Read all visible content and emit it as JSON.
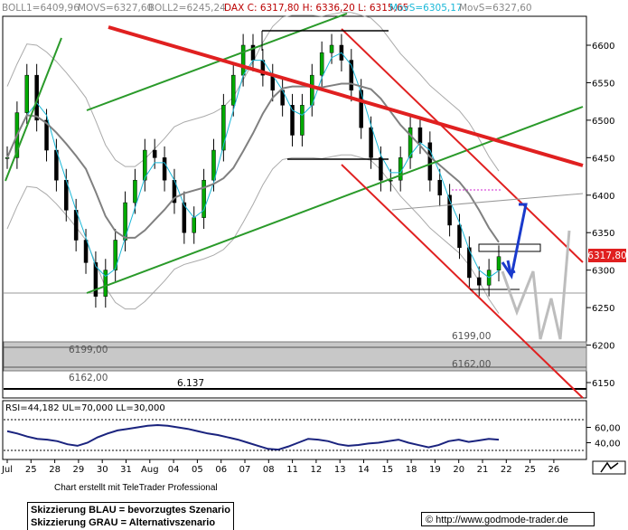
{
  "header": {
    "boll1": "BOLL1=6409,96",
    "movs": "MOVS=6327,60",
    "boll2": "BOLL2=6245,24",
    "dax": "DAX C: 6317,80 H: 6336,20 L: 6315,65",
    "movs5": "MovS=6305,17",
    "movs_b": "MovS=6327,60"
  },
  "levels": {
    "l6199": "6199,00",
    "l6162": "6162,00",
    "l6137": "6.137"
  },
  "last_price": "6317,80",
  "rsi": {
    "label": "RSI=44,182 UL=70,000 LL=30,000"
  },
  "footer": {
    "chart_by": "Chart erstellt mit TeleTrader Professional",
    "legend_blue": "Skizzierung BLAU = bevorzugtes Szenario",
    "legend_grey": "Skizzierung GRAU = Alternativszenario",
    "url": "http://www.godmode-trader.de"
  },
  "colors": {
    "up": "#00aa00",
    "down": "#000000",
    "ma_fast": "#1ab8d8",
    "ma_slow": "#808080",
    "band": "#aaaaaa",
    "trend_red": "#e02020",
    "trend_green": "#2a9a2a",
    "scenario_blue": "#1a3acc",
    "scenario_grey": "#bdbdbd"
  },
  "chart_data": {
    "type": "candlestick",
    "y_ticks": [
      6150,
      6200,
      6250,
      6300,
      6350,
      6400,
      6450,
      6500,
      6550,
      6600
    ],
    "ylim": [
      6130,
      6640
    ],
    "x_ticks": [
      "Jul",
      "25",
      "28",
      "29",
      "30",
      "31",
      "Aug",
      "04",
      "05",
      "06",
      "07",
      "08",
      "11",
      "12",
      "13",
      "14",
      "15",
      "18",
      "19",
      "20",
      "21",
      "22",
      "25",
      "26"
    ],
    "candles_hourly_close": [
      6450,
      6510,
      6560,
      6500,
      6460,
      6420,
      6380,
      6340,
      6310,
      6265,
      6300,
      6340,
      6390,
      6420,
      6460,
      6450,
      6420,
      6390,
      6350,
      6370,
      6420,
      6460,
      6520,
      6560,
      6600,
      6580,
      6560,
      6540,
      6520,
      6480,
      6520,
      6560,
      6590,
      6600,
      6580,
      6540,
      6490,
      6450,
      6420,
      6420,
      6450,
      6490,
      6470,
      6420,
      6400,
      6360,
      6330,
      6290,
      6280,
      6300,
      6318
    ],
    "rsi": {
      "ul": 70,
      "ll": 30,
      "y_ticks": [
        40,
        60
      ],
      "values": [
        55,
        52,
        48,
        45,
        44,
        42,
        38,
        36,
        40,
        47,
        52,
        56,
        58,
        60,
        62,
        63,
        62,
        60,
        58,
        55,
        52,
        50,
        47,
        44,
        40,
        36,
        32,
        31,
        35,
        40,
        45,
        44,
        42,
        38,
        36,
        37,
        39,
        40,
        42,
        44,
        40,
        37,
        34,
        37,
        42,
        44,
        41,
        43,
        45,
        44
      ]
    }
  }
}
